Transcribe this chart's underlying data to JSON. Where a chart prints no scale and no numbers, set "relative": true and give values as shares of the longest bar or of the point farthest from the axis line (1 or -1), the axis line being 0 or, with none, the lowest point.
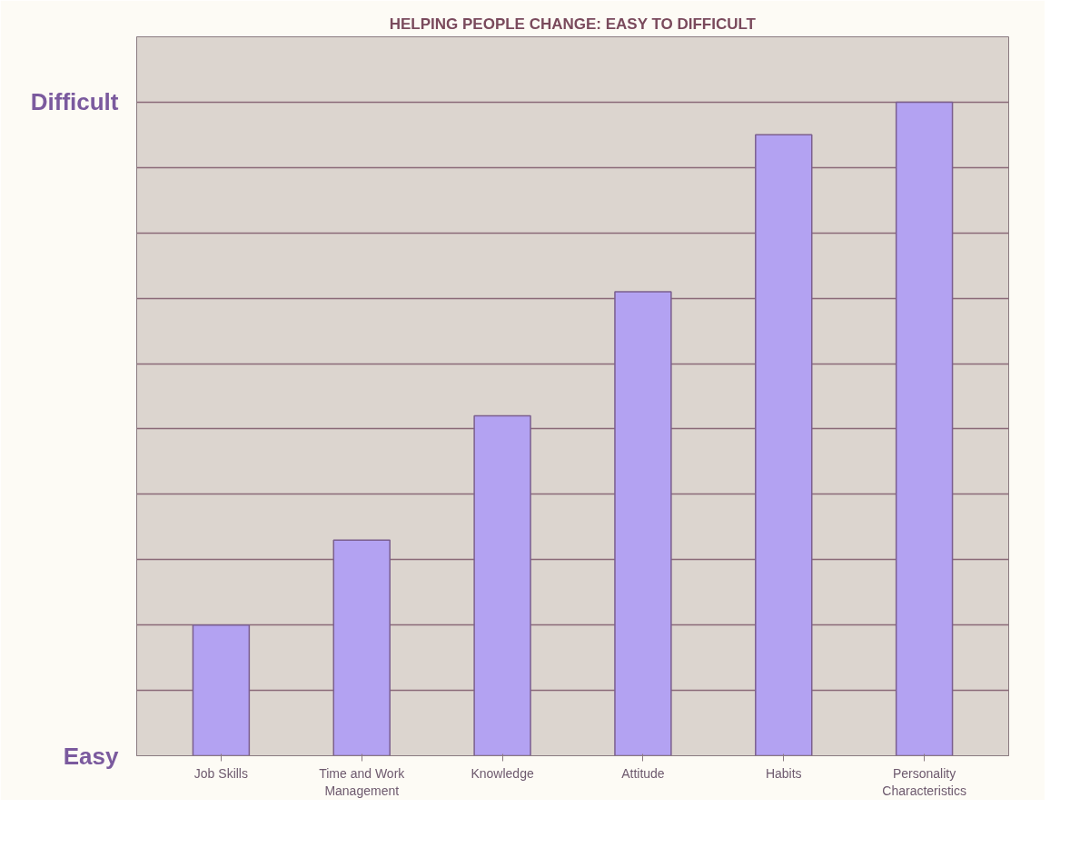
{
  "chart_data": {
    "type": "bar",
    "title": "HELPING PEOPLE CHANGE: EASY TO DIFFICULT",
    "categories": [
      "Job Skills",
      "Time and Work Management",
      "Knowledge",
      "Attitude",
      "Habits",
      "Personality Characteristics"
    ],
    "values": [
      0.2,
      0.33,
      0.52,
      0.71,
      0.95,
      1
    ],
    "color": "#b3a2f2",
    "relative": true,
    "grid": "y",
    "annotations": [
      "Easy",
      "Difficult"
    ]
  }
}
